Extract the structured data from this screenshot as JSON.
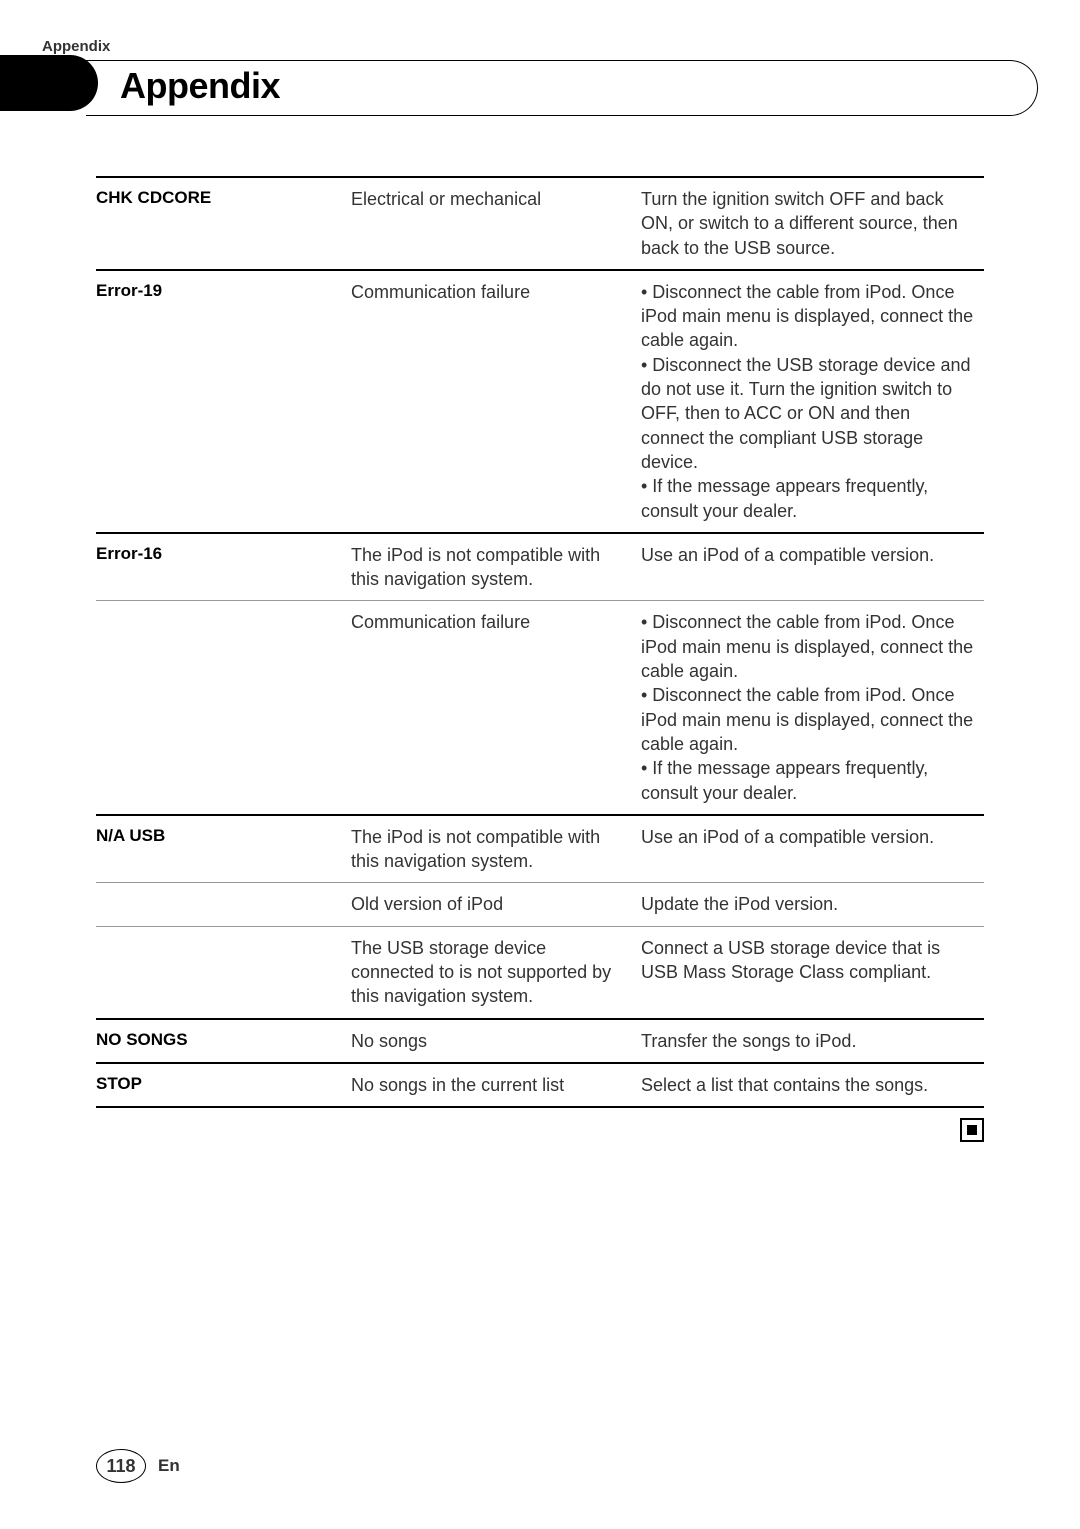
{
  "header": {
    "label": "Appendix",
    "title": "Appendix"
  },
  "table": {
    "rows": [
      {
        "label": "CHK CDCORE",
        "cause": "Electrical or mechanical",
        "action": "Turn the ignition switch OFF and back ON, or switch to a different source, then back to the USB source.",
        "border": "thick"
      },
      {
        "label": "Error-19",
        "cause": "Communication failure",
        "action": "• Disconnect the cable from iPod. Once iPod main menu is displayed, connect the cable again.\n• Disconnect the USB storage device and do not use it. Turn the ignition switch to OFF, then to ACC or ON and then connect the compliant USB storage device.\n• If the message appears frequently, consult your dealer.",
        "border": "thick"
      },
      {
        "label": "Error-16",
        "cause": "The iPod is not compatible with this navigation system.",
        "action": "Use an iPod of a compatible version.",
        "border": "thin"
      },
      {
        "label": "",
        "cause": "Communication failure",
        "action": "• Disconnect the cable from iPod. Once iPod main menu is displayed, connect the cable again.\n• Disconnect the cable from iPod. Once iPod main menu is displayed, connect the cable again.\n• If the message appears frequently, consult your dealer.",
        "border": "thick"
      },
      {
        "label": "N/A USB",
        "cause": "The iPod is not compatible with this navigation system.",
        "action": "Use an iPod of a compatible version.",
        "border": "thin"
      },
      {
        "label": "",
        "cause": "Old version of iPod",
        "action": "Update the iPod version.",
        "border": "thin"
      },
      {
        "label": "",
        "cause": "The USB storage device connected to is not supported by this navigation system.",
        "action": "Connect a USB storage device that is USB Mass Storage Class compliant.",
        "border": "thick"
      },
      {
        "label": "NO SONGS",
        "cause": "No songs",
        "action": "Transfer the songs to iPod.",
        "border": "thick"
      },
      {
        "label": "STOP",
        "cause": "No songs in the current list",
        "action": "Select a list that contains the songs.",
        "border": "thick"
      }
    ]
  },
  "footer": {
    "page": "118",
    "lang": "En"
  }
}
